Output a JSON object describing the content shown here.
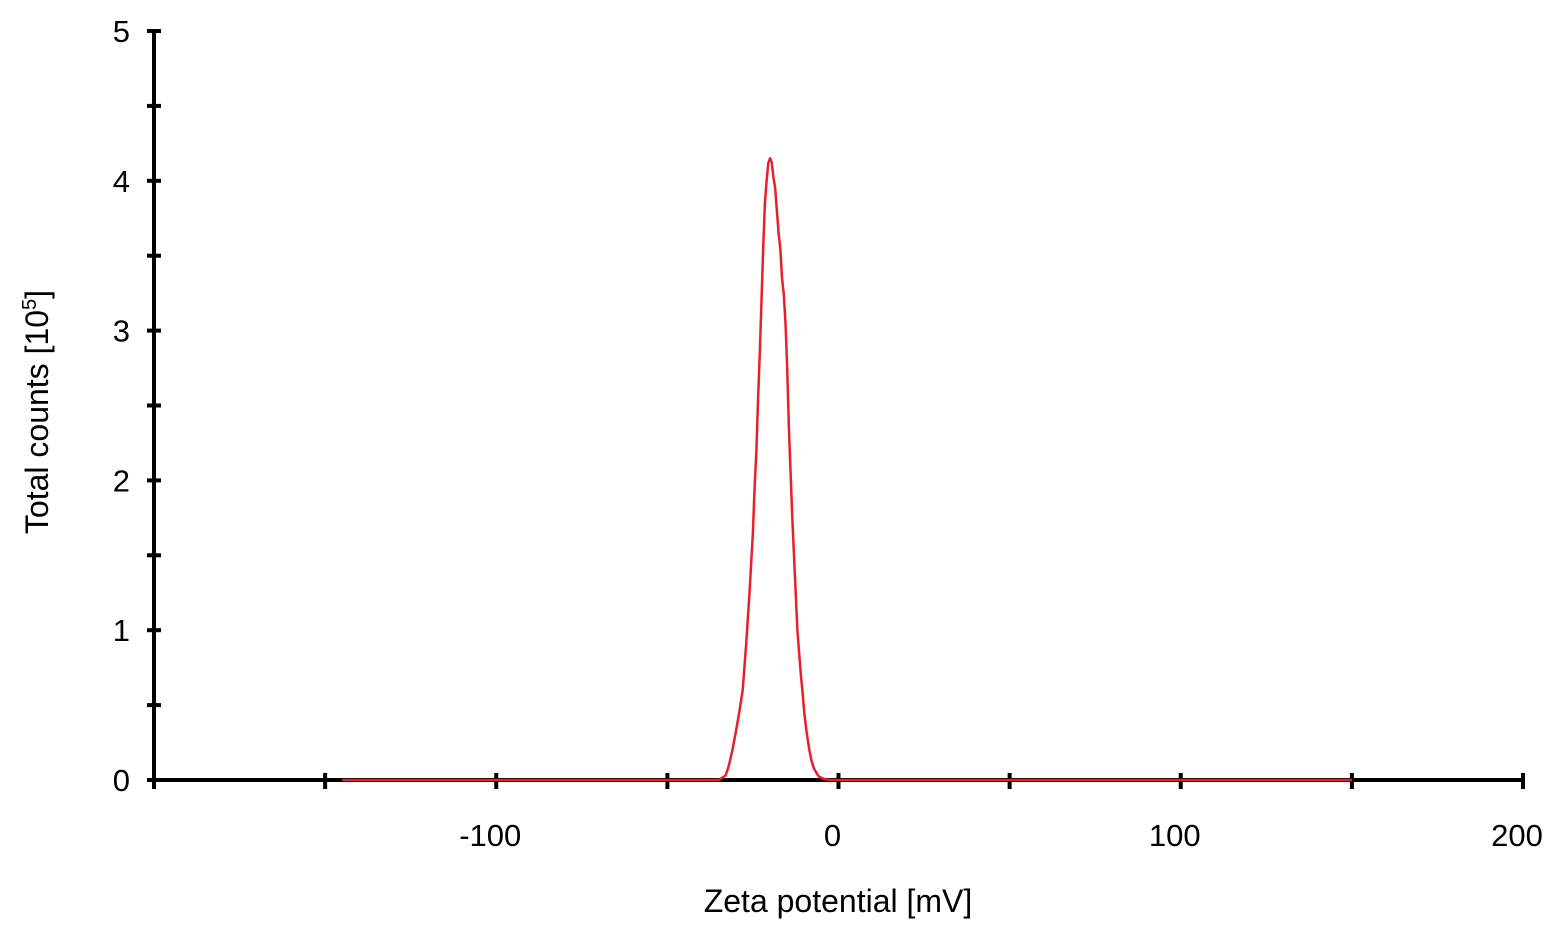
{
  "chart_data": {
    "type": "line",
    "title": "",
    "xlabel": "Zeta potential [mV]",
    "ylabel_main": "Total counts [10",
    "ylabel_sup": "5",
    "ylabel_end": "]",
    "xlim": [
      -200,
      200
    ],
    "ylim": [
      0,
      5
    ],
    "x_tick_values": [
      -150,
      -100,
      -50,
      0,
      50,
      100,
      150,
      200
    ],
    "x_tick_labels": [
      "-100",
      "0",
      "100",
      "200"
    ],
    "x_label_values": [
      -100,
      0,
      100,
      200
    ],
    "y_tick_values": [
      0,
      0.5,
      1,
      1.5,
      2,
      2.5,
      3,
      3.5,
      4,
      4.5,
      5
    ],
    "y_tick_labels": [
      "0",
      "1",
      "2",
      "3",
      "4",
      "5"
    ],
    "y_label_values": [
      0,
      1,
      2,
      3,
      4,
      5
    ],
    "grid": false,
    "legend": "none",
    "series": [
      {
        "color": "#e8202a",
        "x": [
          -145,
          -35,
          -33,
          -32,
          -31,
          -30,
          -29,
          -28,
          -27,
          -26,
          -25,
          -24.5,
          -24,
          -23.5,
          -23,
          -22.5,
          -22,
          -21.5,
          -21,
          -20.5,
          -20,
          -19.5,
          -19,
          -18.5,
          -18,
          -17.5,
          -17,
          -16.5,
          -16,
          -15.5,
          -15,
          -14.5,
          -14,
          -13.5,
          -13,
          -12.5,
          -12,
          -11.5,
          -11,
          -10.5,
          -10,
          -9.5,
          -9,
          -8.5,
          -8,
          -7.5,
          -7,
          -6.5,
          -6,
          -5.5,
          -5,
          -4.5,
          -4,
          -3,
          -2,
          150
        ],
        "y": [
          0,
          0,
          0.03,
          0.1,
          0.2,
          0.32,
          0.45,
          0.6,
          0.9,
          1.25,
          1.65,
          1.95,
          2.2,
          2.55,
          2.85,
          3.2,
          3.55,
          3.85,
          4.0,
          4.12,
          4.15,
          4.12,
          4.02,
          3.95,
          3.8,
          3.65,
          3.55,
          3.35,
          3.25,
          3.05,
          2.75,
          2.35,
          2.05,
          1.75,
          1.5,
          1.25,
          1.0,
          0.85,
          0.7,
          0.58,
          0.45,
          0.35,
          0.27,
          0.2,
          0.14,
          0.1,
          0.07,
          0.05,
          0.03,
          0.02,
          0.015,
          0.01,
          0.005,
          0.002,
          0,
          0
        ]
      }
    ]
  }
}
